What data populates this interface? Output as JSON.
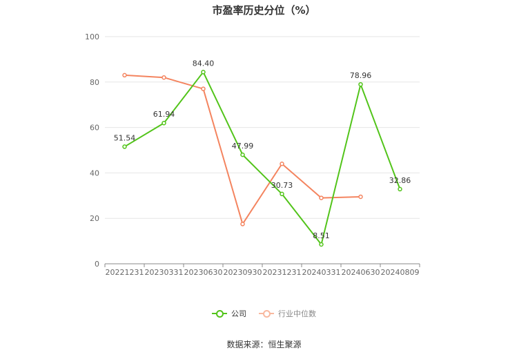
{
  "chart_data": {
    "type": "line",
    "title": "市盈率历史分位（%）",
    "categories": [
      "20221231",
      "20230331",
      "20230630",
      "20230930",
      "20231231",
      "20240331",
      "20240630",
      "20240809"
    ],
    "ylim": [
      0,
      100
    ],
    "yticks": [
      0,
      20,
      40,
      60,
      80,
      100
    ],
    "grid": true,
    "legend_position": "bottom",
    "series": [
      {
        "name": "公司",
        "color": "#52c41a",
        "values": [
          51.54,
          61.94,
          84.4,
          47.99,
          30.73,
          8.51,
          78.96,
          32.86
        ],
        "labels": [
          "51.54",
          "61.94",
          "84.40",
          "47.99",
          "30.73",
          "8.51",
          "78.96",
          "32.86"
        ]
      },
      {
        "name": "行业中位数",
        "color": "#f4845f",
        "values": [
          83,
          82,
          77,
          17.5,
          44,
          29,
          29.5,
          null
        ]
      }
    ]
  },
  "legend": {
    "company": "公司",
    "industry": "行业中位数"
  },
  "source": "数据来源：恒生聚源"
}
